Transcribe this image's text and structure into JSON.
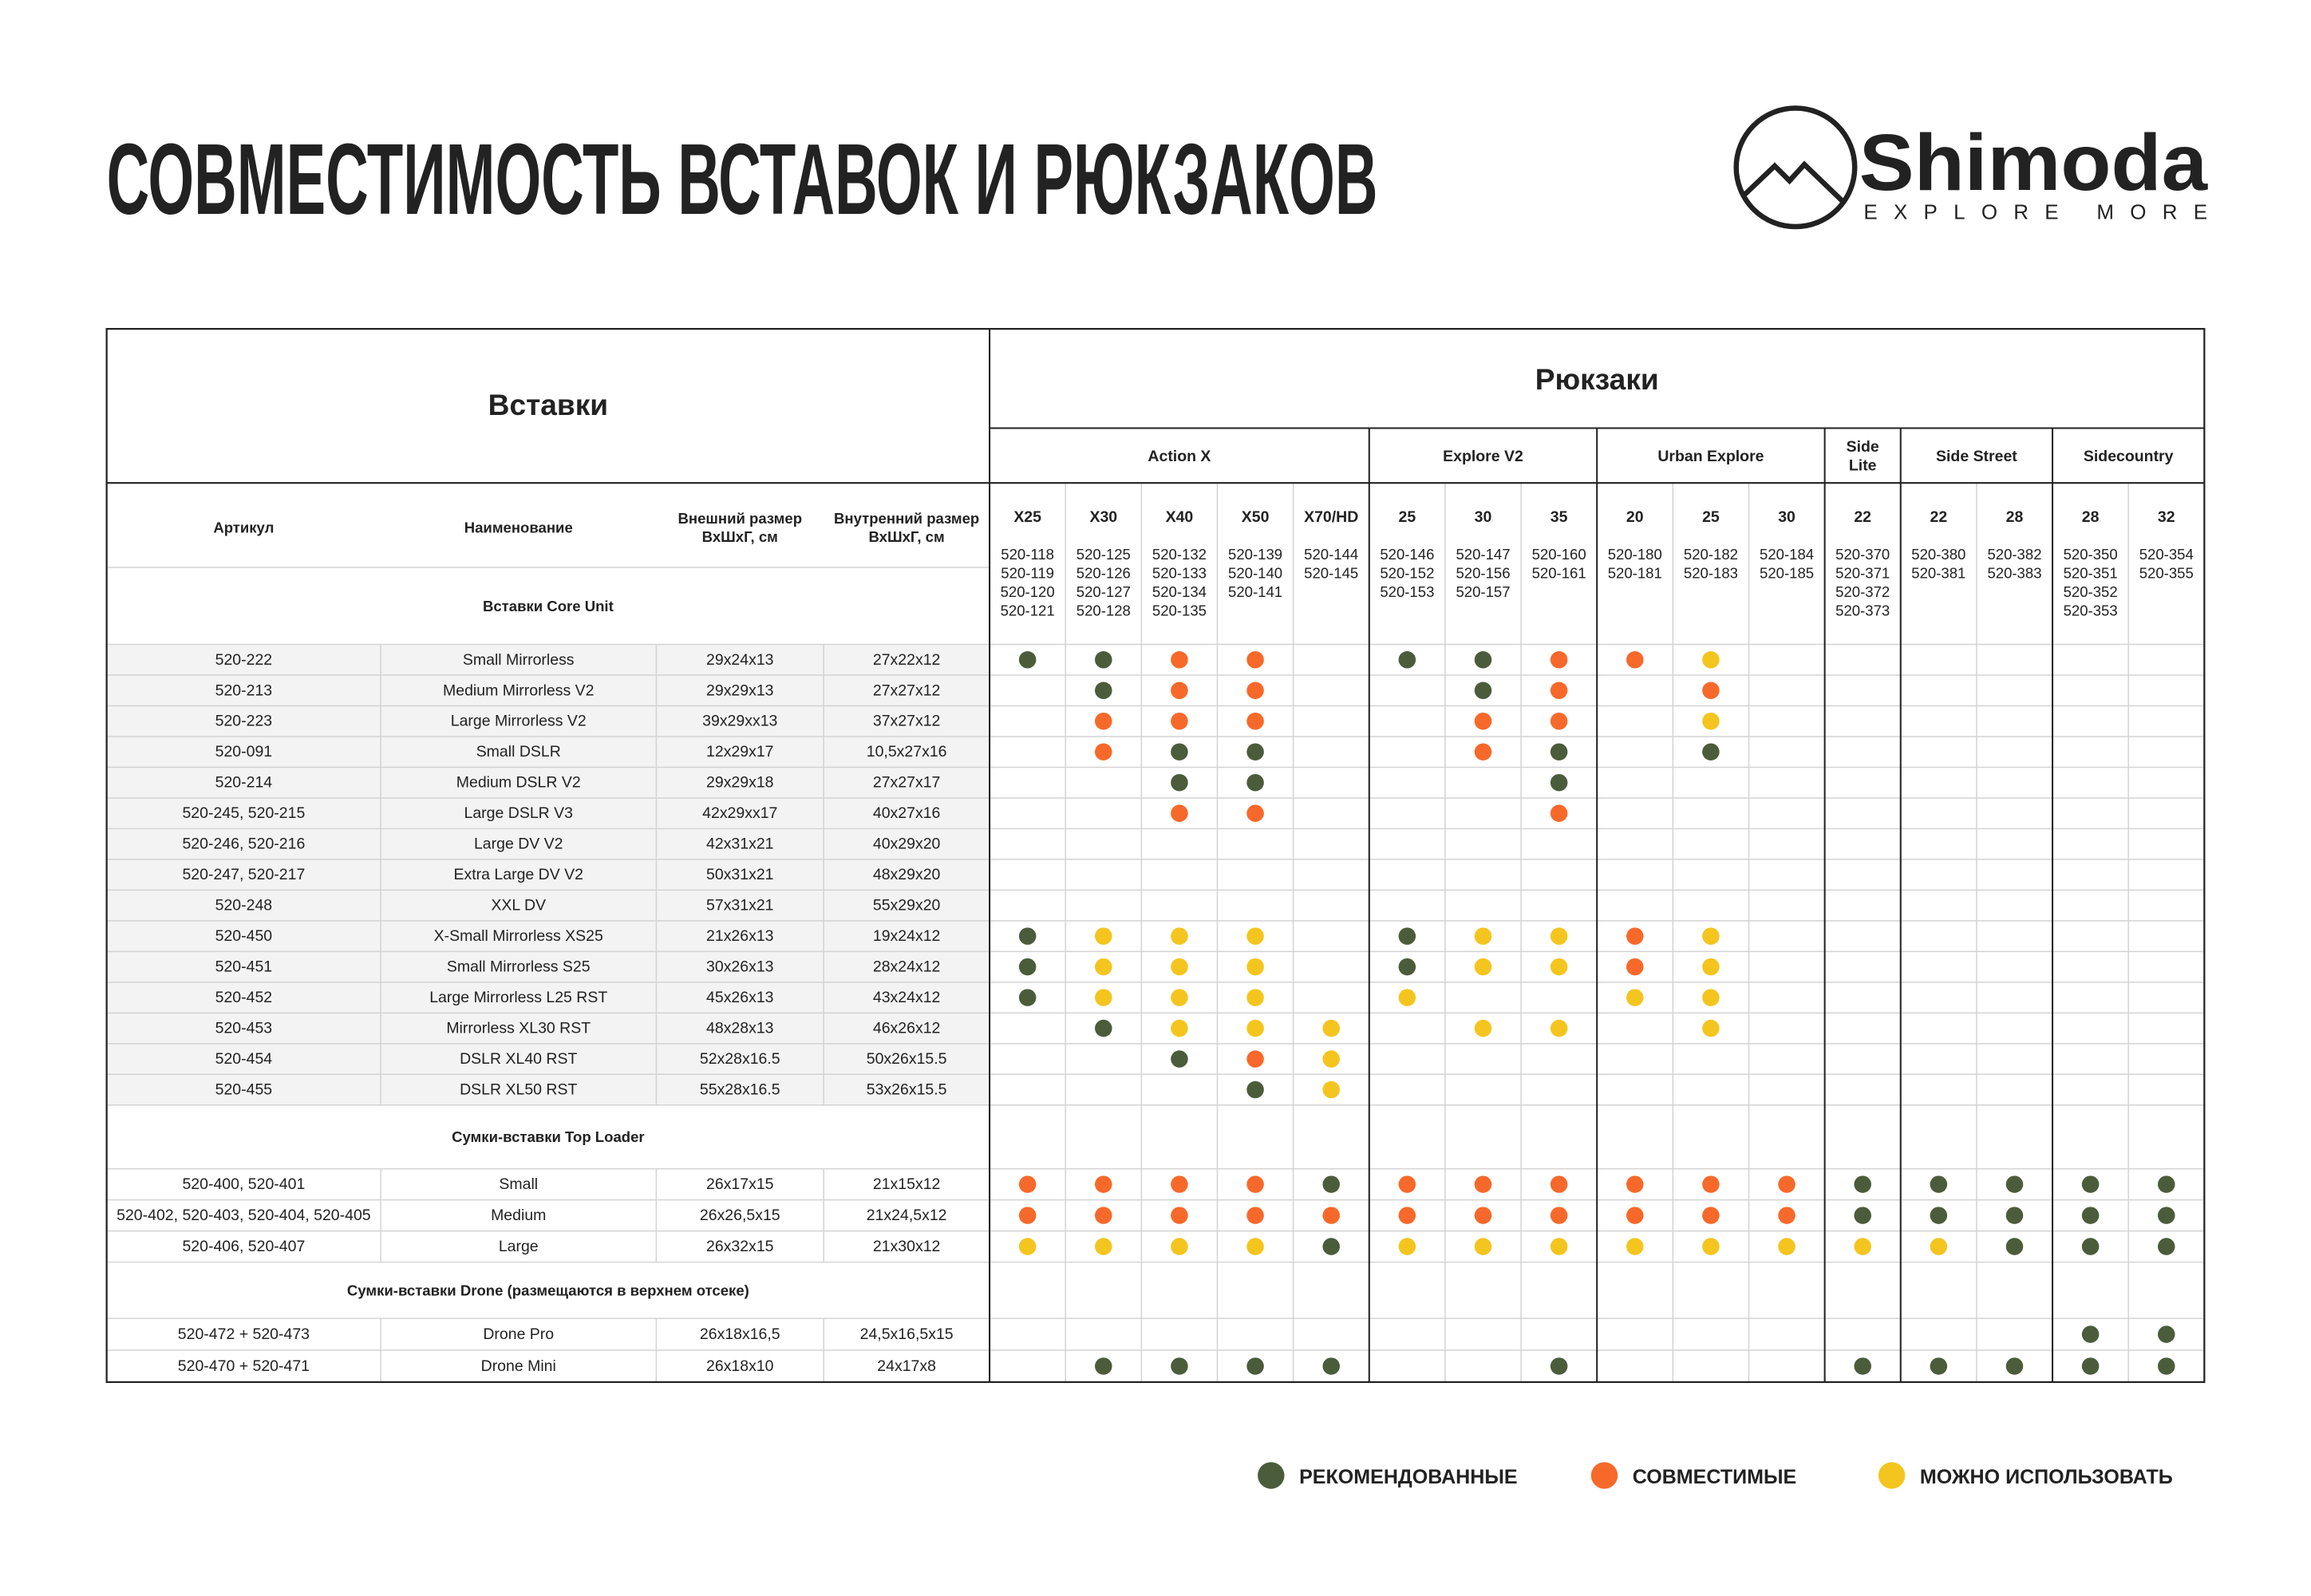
{
  "header": {
    "title": "СОВМЕСТИМОСТЬ ВСТАВОК И РЮКЗАКОВ",
    "logo": {
      "name": "Shimoda",
      "tagline": "EXPLORE MORE"
    }
  },
  "table": {
    "inserts_title": "Вставки",
    "backpacks_title": "Рюкзаки",
    "columns": [
      [
        "Артикул"
      ],
      [
        "Наименование"
      ],
      [
        "Внешний размер",
        "ВхШхГ, см"
      ],
      [
        "Внутренний размер",
        "ВхШхГ, см"
      ]
    ],
    "groups": [
      {
        "name": [
          "Action X"
        ],
        "models": [
          {
            "name": "X25",
            "codes": [
              "520-118",
              "520-119",
              "520-120",
              "520-121"
            ]
          },
          {
            "name": "X30",
            "codes": [
              "520-125",
              "520-126",
              "520-127",
              "520-128"
            ]
          },
          {
            "name": "X40",
            "codes": [
              "520-132",
              "520-133",
              "520-134",
              "520-135"
            ]
          },
          {
            "name": "X50",
            "codes": [
              "520-139",
              "520-140",
              "520-141"
            ]
          },
          {
            "name": "X70/HD",
            "codes": [
              "520-144",
              "520-145"
            ]
          }
        ]
      },
      {
        "name": [
          "Explore V2"
        ],
        "models": [
          {
            "name": "25",
            "codes": [
              "520-146",
              "520-152",
              "520-153"
            ]
          },
          {
            "name": "30",
            "codes": [
              "520-147",
              "520-156",
              "520-157"
            ]
          },
          {
            "name": "35",
            "codes": [
              "520-160",
              "520-161"
            ]
          }
        ]
      },
      {
        "name": [
          "Urban Explore"
        ],
        "models": [
          {
            "name": "20",
            "codes": [
              "520-180",
              "520-181"
            ]
          },
          {
            "name": "25",
            "codes": [
              "520-182",
              "520-183"
            ]
          },
          {
            "name": "30",
            "codes": [
              "520-184",
              "520-185"
            ]
          }
        ]
      },
      {
        "name": [
          "Side",
          "Lite"
        ],
        "models": [
          {
            "name": "22",
            "codes": [
              "520-370",
              "520-371",
              "520-372",
              "520-373"
            ]
          }
        ]
      },
      {
        "name": [
          "Side Street"
        ],
        "models": [
          {
            "name": "22",
            "codes": [
              "520-380",
              "520-381"
            ]
          },
          {
            "name": "28",
            "codes": [
              "520-382",
              "520-383"
            ]
          }
        ]
      },
      {
        "name": [
          "Sidecountry"
        ],
        "models": [
          {
            "name": "28",
            "codes": [
              "520-350",
              "520-351",
              "520-352",
              "520-353"
            ]
          },
          {
            "name": "32",
            "codes": [
              "520-354",
              "520-355"
            ]
          }
        ]
      }
    ],
    "sections": [
      {
        "title": "Вставки Core Unit",
        "rows": [
          {
            "article": "520-222",
            "name": "Small Mirrorless",
            "outer": "29x24x13",
            "inner": "27x22x12",
            "fit": [
              0,
              0,
              1,
              1,
              null,
              0,
              0,
              1,
              1,
              2,
              null,
              null,
              null,
              null,
              null,
              null
            ]
          },
          {
            "article": "520-213",
            "name": "Medium Mirrorless V2",
            "outer": "29x29x13",
            "inner": "27x27x12",
            "fit": [
              null,
              0,
              1,
              1,
              null,
              null,
              0,
              1,
              null,
              1,
              null,
              null,
              null,
              null,
              null,
              null
            ]
          },
          {
            "article": "520-223",
            "name": "Large Mirrorless V2",
            "outer": "39x29xx13",
            "inner": "37x27x12",
            "fit": [
              null,
              1,
              1,
              1,
              null,
              null,
              1,
              1,
              null,
              2,
              null,
              null,
              null,
              null,
              null,
              null
            ]
          },
          {
            "article": "520-091",
            "name": "Small DSLR",
            "outer": "12x29x17",
            "inner": "10,5x27x16",
            "fit": [
              null,
              1,
              0,
              0,
              null,
              null,
              1,
              0,
              null,
              0,
              null,
              null,
              null,
              null,
              null,
              null
            ]
          },
          {
            "article": "520-214",
            "name": "Medium DSLR V2",
            "outer": "29x29x18",
            "inner": "27x27x17",
            "fit": [
              null,
              null,
              0,
              0,
              null,
              null,
              null,
              0,
              null,
              null,
              null,
              null,
              null,
              null,
              null,
              null
            ]
          },
          {
            "article": "520-245, 520-215",
            "name": "Large DSLR V3",
            "outer": "42x29xx17",
            "inner": "40x27x16",
            "fit": [
              null,
              null,
              1,
              1,
              null,
              null,
              null,
              1,
              null,
              null,
              null,
              null,
              null,
              null,
              null,
              null
            ]
          },
          {
            "article": "520-246, 520-216",
            "name": "Large DV V2",
            "outer": "42x31x21",
            "inner": "40x29x20",
            "fit": [
              null,
              null,
              null,
              null,
              null,
              null,
              null,
              null,
              null,
              null,
              null,
              null,
              null,
              null,
              null,
              null
            ]
          },
          {
            "article": "520-247, 520-217",
            "name": "Extra Large DV V2",
            "outer": "50x31x21",
            "inner": "48x29x20",
            "fit": [
              null,
              null,
              null,
              null,
              null,
              null,
              null,
              null,
              null,
              null,
              null,
              null,
              null,
              null,
              null,
              null
            ]
          },
          {
            "article": "520-248",
            "name": "XXL DV",
            "outer": "57x31x21",
            "inner": "55x29x20",
            "fit": [
              null,
              null,
              null,
              null,
              null,
              null,
              null,
              null,
              null,
              null,
              null,
              null,
              null,
              null,
              null,
              null
            ]
          },
          {
            "article": "520-450",
            "name": "X-Small Mirrorless XS25",
            "outer": "21x26x13",
            "inner": "19x24x12",
            "fit": [
              0,
              2,
              2,
              2,
              null,
              0,
              2,
              2,
              1,
              2,
              null,
              null,
              null,
              null,
              null,
              null
            ]
          },
          {
            "article": "520-451",
            "name": "Small Mirrorless S25",
            "outer": "30x26x13",
            "inner": "28x24x12",
            "fit": [
              0,
              2,
              2,
              2,
              null,
              0,
              2,
              2,
              1,
              2,
              null,
              null,
              null,
              null,
              null,
              null
            ]
          },
          {
            "article": "520-452",
            "name": "Large Mirrorless L25 RST",
            "outer": "45x26x13",
            "inner": "43x24x12",
            "fit": [
              0,
              2,
              2,
              2,
              null,
              2,
              null,
              null,
              2,
              2,
              null,
              null,
              null,
              null,
              null,
              null
            ]
          },
          {
            "article": "520-453",
            "name": "Mirrorless XL30 RST",
            "outer": "48x28x13",
            "inner": "46x26x12",
            "fit": [
              null,
              0,
              2,
              2,
              2,
              null,
              2,
              2,
              null,
              2,
              null,
              null,
              null,
              null,
              null,
              null
            ]
          },
          {
            "article": "520-454",
            "name": "DSLR XL40 RST",
            "outer": "52x28x16.5",
            "inner": "50x26x15.5",
            "fit": [
              null,
              null,
              0,
              1,
              2,
              null,
              null,
              null,
              null,
              null,
              null,
              null,
              null,
              null,
              null,
              null
            ]
          },
          {
            "article": "520-455",
            "name": "DSLR XL50 RST",
            "outer": "55x28x16.5",
            "inner": "53x26x15.5",
            "fit": [
              null,
              null,
              null,
              0,
              2,
              null,
              null,
              null,
              null,
              null,
              null,
              null,
              null,
              null,
              null,
              null
            ]
          }
        ]
      },
      {
        "title": "Сумки-вставки Top Loader",
        "rows": [
          {
            "article": "520-400, 520-401",
            "name": "Small",
            "outer": "26x17x15",
            "inner": "21x15x12",
            "fit": [
              1,
              1,
              1,
              1,
              0,
              1,
              1,
              1,
              1,
              1,
              1,
              0,
              0,
              0,
              0,
              0
            ]
          },
          {
            "article": "520-402, 520-403, 520-404, 520-405",
            "name": "Medium",
            "outer": "26x26,5x15",
            "inner": "21x24,5x12",
            "fit": [
              1,
              1,
              1,
              1,
              1,
              1,
              1,
              1,
              1,
              1,
              1,
              0,
              0,
              0,
              0,
              0
            ]
          },
          {
            "article": "520-406, 520-407",
            "name": "Large",
            "outer": "26x32x15",
            "inner": "21x30x12",
            "fit": [
              2,
              2,
              2,
              2,
              0,
              2,
              2,
              2,
              2,
              2,
              2,
              2,
              2,
              0,
              0,
              0
            ]
          }
        ]
      },
      {
        "title": "Сумки-вставки Drone (размещаются в верхнем отсеке)",
        "rows": [
          {
            "article": "520-472 + 520-473",
            "name": "Drone Pro",
            "outer": "26x18x16,5",
            "inner": "24,5x16,5x15",
            "fit": [
              null,
              null,
              null,
              null,
              null,
              null,
              null,
              null,
              null,
              null,
              null,
              null,
              null,
              null,
              0,
              0
            ]
          },
          {
            "article": "520-470 + 520-471",
            "name": "Drone Mini",
            "outer": "26x18x10",
            "inner": "24x17x8",
            "fit": [
              null,
              0,
              0,
              0,
              0,
              null,
              null,
              0,
              null,
              null,
              null,
              0,
              0,
              0,
              0,
              0
            ]
          }
        ]
      }
    ]
  },
  "legend": [
    {
      "label": "РЕКОМЕНДОВАННЫЕ",
      "color": "#4b5c3b"
    },
    {
      "label": "СОВМЕСТИМЫЕ",
      "color": "#f7692a"
    },
    {
      "label": "МОЖНО ИСПОЛЬЗОВАТЬ",
      "color": "#f4c51f"
    }
  ]
}
